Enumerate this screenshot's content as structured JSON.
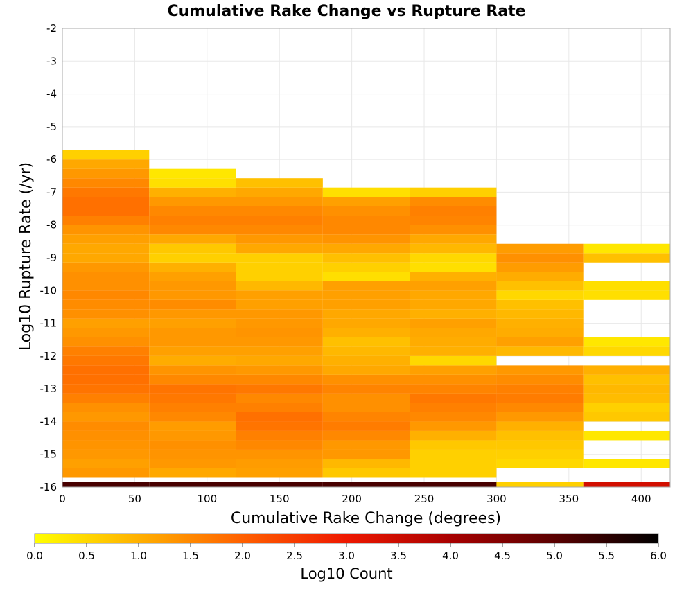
{
  "chart_data": {
    "type": "heatmap",
    "title": "Cumulative Rake Change vs Rupture Rate",
    "xlabel": "Cumulative Rake Change (degrees)",
    "ylabel": "Log10 Rupture Rate (/yr)",
    "xlim": [
      0,
      420
    ],
    "ylim": [
      -16,
      -2
    ],
    "xticks": [
      "0",
      "50",
      "100",
      "150",
      "200",
      "250",
      "300",
      "350",
      "400"
    ],
    "yticks": [
      "-2",
      "-3",
      "-4",
      "-5",
      "-6",
      "-7",
      "-8",
      "-9",
      "-10",
      "-11",
      "-12",
      "-13",
      "-14",
      "-15",
      "-16"
    ],
    "grid": true,
    "colorbar": {
      "label": "Log10 Count",
      "range": [
        0,
        6
      ],
      "ticks": [
        "0.0",
        "0.5",
        "1.0",
        "1.5",
        "2.0",
        "2.5",
        "3.0",
        "3.5",
        "4.0",
        "4.5",
        "5.0",
        "5.5",
        "6.0"
      ],
      "colors": [
        "#ffff00",
        "#ffb000",
        "#ff6000",
        "#ee1800",
        "#a80000",
        "#5a0000",
        "#000000"
      ]
    },
    "x_bin_edges": [
      0,
      60,
      120,
      180,
      240,
      300,
      360,
      420
    ],
    "y_bin_start": -16.0,
    "y_bin_width": 0.2857,
    "columns": [
      {
        "x_range": [
          0,
          60
        ],
        "log10_counts": [
          5.2,
          1.3,
          1.2,
          1.3,
          1.35,
          1.4,
          1.45,
          1.3,
          1.4,
          1.6,
          1.75,
          1.8,
          1.8,
          1.7,
          1.6,
          1.4,
          1.3,
          1.2,
          1.4,
          1.45,
          1.5,
          1.4,
          1.4,
          1.3,
          1.1,
          1.1,
          1.2,
          1.35,
          1.6,
          1.8,
          1.8,
          1.7,
          1.5,
          1.3,
          1.1,
          0.6
        ]
      },
      {
        "x_range": [
          60,
          120
        ],
        "log10_counts": [
          5.2,
          1.1,
          1.3,
          1.35,
          1.4,
          1.3,
          1.25,
          1.5,
          1.6,
          1.7,
          1.75,
          1.5,
          1.35,
          1.05,
          1.2,
          1.3,
          1.3,
          1.2,
          1.3,
          1.45,
          1.3,
          1.3,
          1.2,
          1.0,
          0.6,
          0.7,
          1.1,
          1.5,
          1.6,
          1.5,
          1.3,
          1.0,
          0.4,
          0.3
        ]
      },
      {
        "x_range": [
          120,
          180
        ],
        "log10_counts": [
          5.2,
          1.2,
          1.25,
          1.35,
          1.5,
          1.6,
          1.75,
          1.8,
          1.6,
          1.5,
          1.7,
          1.5,
          1.3,
          1.1,
          1.2,
          1.3,
          1.35,
          1.3,
          1.3,
          1.2,
          1.2,
          0.9,
          0.6,
          0.6,
          0.6,
          1.1,
          1.3,
          1.5,
          1.6,
          1.5,
          1.3,
          1.1,
          0.8
        ]
      },
      {
        "x_range": [
          180,
          240
        ],
        "log10_counts": [
          5.2,
          0.7,
          0.9,
          1.3,
          1.3,
          1.5,
          1.65,
          1.55,
          1.4,
          1.4,
          1.55,
          1.4,
          1.1,
          1.0,
          0.9,
          0.8,
          1.0,
          1.1,
          1.1,
          1.2,
          1.2,
          1.2,
          0.4,
          0.6,
          0.8,
          1.1,
          1.35,
          1.5,
          1.5,
          1.4,
          1.2,
          0.4
        ]
      },
      {
        "x_range": [
          240,
          300
        ],
        "log10_counts": [
          5.2,
          0.6,
          0.6,
          0.6,
          0.7,
          1.0,
          1.3,
          1.5,
          1.6,
          1.7,
          1.55,
          1.4,
          1.2,
          0.5,
          1.0,
          1.05,
          1.1,
          1.2,
          1.0,
          1.1,
          1.1,
          1.2,
          1.0,
          0.4,
          0.5,
          0.9,
          1.1,
          1.4,
          1.55,
          1.6,
          1.45,
          0.6
        ]
      },
      {
        "x_range": [
          300,
          360
        ],
        "log10_counts": [
          0.6,
          null,
          0.5,
          0.6,
          0.7,
          0.8,
          1.0,
          1.3,
          1.5,
          1.65,
          1.6,
          1.45,
          1.3,
          null,
          0.9,
          1.2,
          1.05,
          1.0,
          0.9,
          0.8,
          0.5,
          0.8,
          1.05,
          1.25,
          1.4,
          1.25
        ]
      },
      {
        "x_range": [
          360,
          420
        ],
        "log10_counts": [
          3.4,
          null,
          0.3,
          null,
          null,
          0.3,
          null,
          0.7,
          0.6,
          0.85,
          0.9,
          0.8,
          1.0,
          null,
          0.5,
          0.3,
          null,
          null,
          null,
          null,
          0.4,
          0.4,
          null,
          null,
          0.8,
          0.3,
          null,
          null,
          null,
          null,
          null,
          null,
          null,
          null,
          null,
          null
        ]
      }
    ],
    "column_top_bins_note": "Each column list runs from the bottom bin (-16) upward; bins beyond the list are empty."
  }
}
